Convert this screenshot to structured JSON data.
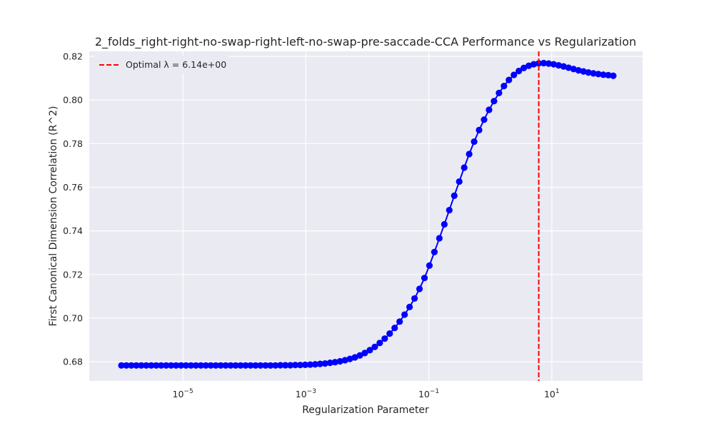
{
  "chart_data": {
    "type": "line",
    "title": "2_folds_right-right-no-swap-right-left-no-swap-pre-saccade-CCA Performance vs Regularization",
    "xlabel": "Regularization Parameter",
    "ylabel": "First Canonical Dimension Correlation (R^2)",
    "x_scale": "log",
    "xlim": [
      3e-07,
      300
    ],
    "ylim": [
      0.6712,
      0.8223
    ],
    "x_ticks": [
      {
        "value": 1e-05,
        "base": "10",
        "exp": "−5"
      },
      {
        "value": 0.001,
        "base": "10",
        "exp": "−3"
      },
      {
        "value": 0.1,
        "base": "10",
        "exp": "−1"
      },
      {
        "value": 10,
        "base": "10",
        "exp": "1"
      }
    ],
    "y_ticks": [
      0.68,
      0.7,
      0.72,
      0.74,
      0.76,
      0.78,
      0.8,
      0.82
    ],
    "y_tick_labels": [
      "0.68",
      "0.70",
      "0.72",
      "0.74",
      "0.76",
      "0.78",
      "0.80",
      "0.82"
    ],
    "grid": true,
    "legend_placement": "top-left",
    "series": [
      {
        "color": "#0000ff",
        "marker": "circle",
        "x_log10_range": [
          -6,
          2
        ],
        "n_points": 100,
        "y": [
          0.6783,
          0.6783,
          0.6783,
          0.6783,
          0.6783,
          0.6783,
          0.6783,
          0.6783,
          0.6783,
          0.6783,
          0.6783,
          0.6783,
          0.6783,
          0.6783,
          0.6783,
          0.6783,
          0.6783,
          0.6783,
          0.6783,
          0.6783,
          0.6783,
          0.6783,
          0.6783,
          0.6783,
          0.6783,
          0.6783,
          0.6783,
          0.6783,
          0.6783,
          0.6783,
          0.6783,
          0.6783,
          0.6784,
          0.6784,
          0.6784,
          0.6785,
          0.6785,
          0.6786,
          0.6787,
          0.6788,
          0.679,
          0.6792,
          0.6795,
          0.6798,
          0.6802,
          0.6807,
          0.6813,
          0.682,
          0.6829,
          0.684,
          0.6853,
          0.6868,
          0.6886,
          0.6906,
          0.6929,
          0.6955,
          0.6984,
          0.7016,
          0.7051,
          0.709,
          0.7134,
          0.7184,
          0.7241,
          0.7303,
          0.7366,
          0.743,
          0.7495,
          0.7561,
          0.7626,
          0.769,
          0.7752,
          0.7809,
          0.7862,
          0.791,
          0.7955,
          0.7995,
          0.8032,
          0.8064,
          0.8092,
          0.8115,
          0.8133,
          0.8147,
          0.8157,
          0.8164,
          0.8168,
          0.8169,
          0.8167,
          0.8164,
          0.8159,
          0.8154,
          0.8148,
          0.8142,
          0.8136,
          0.8131,
          0.8126,
          0.8122,
          0.8119,
          0.8116,
          0.8114,
          0.8111
        ]
      },
      {
        "name": "Optimal λ = 6.14e+00",
        "type": "vline",
        "x": 6.14,
        "color": "#ff0000",
        "linestyle": "dashed"
      }
    ]
  }
}
